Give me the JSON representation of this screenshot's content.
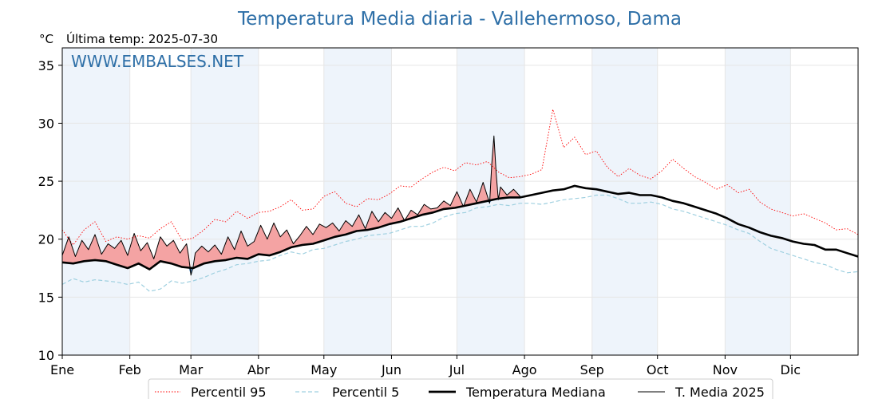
{
  "chart_data": {
    "type": "line",
    "title": "Temperatura Media diaria - Vallehermoso, Dama",
    "unit_label": "°C",
    "last_temp_label": "Última temp: 2025-07-30",
    "watermark": "WWW.EMBALSES.NET",
    "ylim": [
      10,
      36.5
    ],
    "yticks": [
      10,
      15,
      20,
      25,
      30,
      35
    ],
    "xlim": [
      1,
      366
    ],
    "month_ticks": [
      {
        "label": "Ene",
        "day": 1
      },
      {
        "label": "Feb",
        "day": 32
      },
      {
        "label": "Mar",
        "day": 60
      },
      {
        "label": "Abr",
        "day": 91
      },
      {
        "label": "May",
        "day": 121
      },
      {
        "label": "Jun",
        "day": 152
      },
      {
        "label": "Jul",
        "day": 182
      },
      {
        "label": "Ago",
        "day": 213
      },
      {
        "label": "Sep",
        "day": 244
      },
      {
        "label": "Oct",
        "day": 274
      },
      {
        "label": "Nov",
        "day": 305
      },
      {
        "label": "Dic",
        "day": 335
      }
    ],
    "shaded_months": [
      [
        1,
        32
      ],
      [
        60,
        91
      ],
      [
        121,
        152
      ],
      [
        182,
        213
      ],
      [
        244,
        274
      ],
      [
        305,
        335
      ]
    ],
    "grid": true,
    "legend_position": "bottom",
    "colors": {
      "p95": "#ff0000",
      "p5": "#9fd0e0",
      "median": "#000000",
      "current": "#000000",
      "above_fill": "#f4a3a3",
      "below_fill": "#4a7fb5",
      "shade": "#eef4fb",
      "title": "#2e6fa7"
    },
    "series": [
      {
        "name": "Percentil 95",
        "style": "dotted",
        "x": [
          1,
          6,
          11,
          16,
          21,
          26,
          31,
          36,
          41,
          46,
          51,
          56,
          61,
          66,
          71,
          76,
          81,
          86,
          91,
          96,
          101,
          106,
          111,
          116,
          121,
          126,
          131,
          136,
          141,
          146,
          151,
          156,
          161,
          166,
          171,
          176,
          181,
          186,
          191,
          196,
          201,
          206,
          211,
          216,
          221,
          226,
          231,
          236,
          241,
          246,
          251,
          256,
          261,
          266,
          271,
          276,
          281,
          286,
          291,
          296,
          301,
          306,
          311,
          316,
          321,
          326,
          331,
          336,
          341,
          346,
          351,
          356,
          361,
          366
        ],
        "values": [
          20.8,
          19.5,
          20.8,
          21.5,
          19.8,
          20.2,
          20.0,
          20.3,
          20.1,
          20.9,
          21.5,
          19.9,
          20.1,
          20.8,
          21.7,
          21.5,
          22.4,
          21.8,
          22.3,
          22.4,
          22.8,
          23.4,
          22.5,
          22.6,
          23.7,
          24.1,
          23.1,
          22.8,
          23.5,
          23.4,
          23.9,
          24.6,
          24.5,
          25.2,
          25.8,
          26.2,
          25.9,
          26.6,
          26.4,
          26.7,
          25.8,
          25.3,
          25.4,
          25.6,
          26.0,
          31.2,
          27.9,
          28.8,
          27.3,
          27.6,
          26.2,
          25.4,
          26.1,
          25.5,
          25.2,
          25.9,
          26.9,
          26.1,
          25.4,
          24.9,
          24.3,
          24.7,
          24.0,
          24.3,
          23.2,
          22.6,
          22.3,
          22.0,
          22.2,
          21.8,
          21.4,
          20.8,
          20.9,
          20.4
        ]
      },
      {
        "name": "Percentil 5",
        "style": "dashed",
        "x": [
          1,
          6,
          11,
          16,
          21,
          26,
          31,
          36,
          41,
          46,
          51,
          56,
          61,
          66,
          71,
          76,
          81,
          86,
          91,
          96,
          101,
          106,
          111,
          116,
          121,
          126,
          131,
          136,
          141,
          146,
          151,
          156,
          161,
          166,
          171,
          176,
          181,
          186,
          191,
          196,
          201,
          206,
          211,
          216,
          221,
          226,
          231,
          236,
          241,
          246,
          251,
          256,
          261,
          266,
          271,
          276,
          281,
          286,
          291,
          296,
          301,
          306,
          311,
          316,
          321,
          326,
          331,
          336,
          341,
          346,
          351,
          356,
          361,
          366
        ],
        "values": [
          16.1,
          16.6,
          16.3,
          16.5,
          16.4,
          16.3,
          16.1,
          16.3,
          15.5,
          15.7,
          16.4,
          16.2,
          16.4,
          16.7,
          17.1,
          17.4,
          17.8,
          17.9,
          18.1,
          18.2,
          18.6,
          18.9,
          18.7,
          19.1,
          19.2,
          19.5,
          19.8,
          20.0,
          20.3,
          20.4,
          20.5,
          20.8,
          21.1,
          21.1,
          21.4,
          21.9,
          22.2,
          22.3,
          22.7,
          22.8,
          23.0,
          22.9,
          23.1,
          23.1,
          23.0,
          23.2,
          23.4,
          23.5,
          23.6,
          23.8,
          23.8,
          23.5,
          23.1,
          23.1,
          23.2,
          23.0,
          22.6,
          22.4,
          22.1,
          21.8,
          21.5,
          21.2,
          20.8,
          20.5,
          19.8,
          19.2,
          18.9,
          18.6,
          18.3,
          18.0,
          17.8,
          17.4,
          17.1,
          17.2
        ]
      },
      {
        "name": "Temperatura Mediana",
        "style": "solid-thick",
        "x": [
          1,
          6,
          11,
          16,
          21,
          26,
          31,
          36,
          41,
          46,
          51,
          56,
          61,
          66,
          71,
          76,
          81,
          86,
          91,
          96,
          101,
          106,
          111,
          116,
          121,
          126,
          131,
          136,
          141,
          146,
          151,
          156,
          161,
          166,
          171,
          176,
          181,
          186,
          191,
          196,
          201,
          206,
          211,
          216,
          221,
          226,
          231,
          236,
          241,
          246,
          251,
          256,
          261,
          266,
          271,
          276,
          281,
          286,
          291,
          296,
          301,
          306,
          311,
          316,
          321,
          326,
          331,
          336,
          341,
          346,
          351,
          356,
          361,
          366
        ],
        "values": [
          18.0,
          17.9,
          18.1,
          18.2,
          18.1,
          17.8,
          17.5,
          17.9,
          17.4,
          18.1,
          17.9,
          17.6,
          17.5,
          17.9,
          18.1,
          18.2,
          18.4,
          18.3,
          18.7,
          18.6,
          18.9,
          19.3,
          19.5,
          19.6,
          19.9,
          20.2,
          20.4,
          20.7,
          20.8,
          21.0,
          21.3,
          21.5,
          21.8,
          22.1,
          22.3,
          22.6,
          22.7,
          22.9,
          23.1,
          23.3,
          23.5,
          23.6,
          23.6,
          23.8,
          24.0,
          24.2,
          24.3,
          24.6,
          24.4,
          24.3,
          24.1,
          23.9,
          24.0,
          23.8,
          23.8,
          23.6,
          23.3,
          23.1,
          22.8,
          22.5,
          22.2,
          21.8,
          21.3,
          21.0,
          20.6,
          20.3,
          20.1,
          19.8,
          19.6,
          19.5,
          19.1,
          19.1,
          18.8,
          18.5
        ]
      },
      {
        "name": "T. Media 2025",
        "style": "solid-thin",
        "x": [
          1,
          4,
          7,
          10,
          13,
          16,
          19,
          22,
          25,
          28,
          31,
          34,
          37,
          40,
          43,
          46,
          49,
          52,
          55,
          58,
          59,
          60,
          61,
          62,
          65,
          68,
          71,
          74,
          77,
          80,
          83,
          86,
          89,
          92,
          95,
          98,
          101,
          104,
          107,
          110,
          113,
          116,
          119,
          122,
          125,
          128,
          131,
          134,
          137,
          140,
          143,
          146,
          149,
          152,
          155,
          158,
          161,
          164,
          167,
          170,
          173,
          176,
          179,
          182,
          185,
          188,
          191,
          194,
          197,
          198,
          199,
          200,
          201,
          202,
          205,
          208,
          211
        ],
        "values": [
          18.6,
          20.2,
          18.5,
          19.9,
          19.1,
          20.4,
          18.7,
          19.6,
          19.2,
          19.9,
          18.6,
          20.5,
          19.0,
          19.7,
          18.3,
          20.2,
          19.4,
          19.9,
          18.8,
          19.6,
          18.5,
          16.9,
          17.6,
          18.8,
          19.4,
          18.9,
          19.5,
          18.7,
          20.2,
          19.1,
          20.7,
          19.4,
          19.8,
          21.2,
          20.0,
          21.4,
          20.2,
          20.8,
          19.6,
          20.3,
          21.1,
          20.4,
          21.3,
          21.0,
          21.4,
          20.7,
          21.6,
          21.1,
          22.1,
          20.9,
          22.4,
          21.5,
          22.3,
          21.8,
          22.7,
          21.6,
          22.5,
          22.1,
          23.0,
          22.6,
          22.7,
          23.3,
          22.9,
          24.1,
          22.8,
          24.3,
          23.2,
          24.9,
          23.1,
          26.5,
          28.9,
          25.7,
          23.4,
          24.5,
          23.8,
          24.3,
          23.7
        ]
      }
    ]
  },
  "legend": {
    "items": [
      {
        "label": "Percentil 95"
      },
      {
        "label": "Percentil 5"
      },
      {
        "label": "Temperatura Mediana"
      },
      {
        "label": "T. Media 2025"
      }
    ]
  }
}
